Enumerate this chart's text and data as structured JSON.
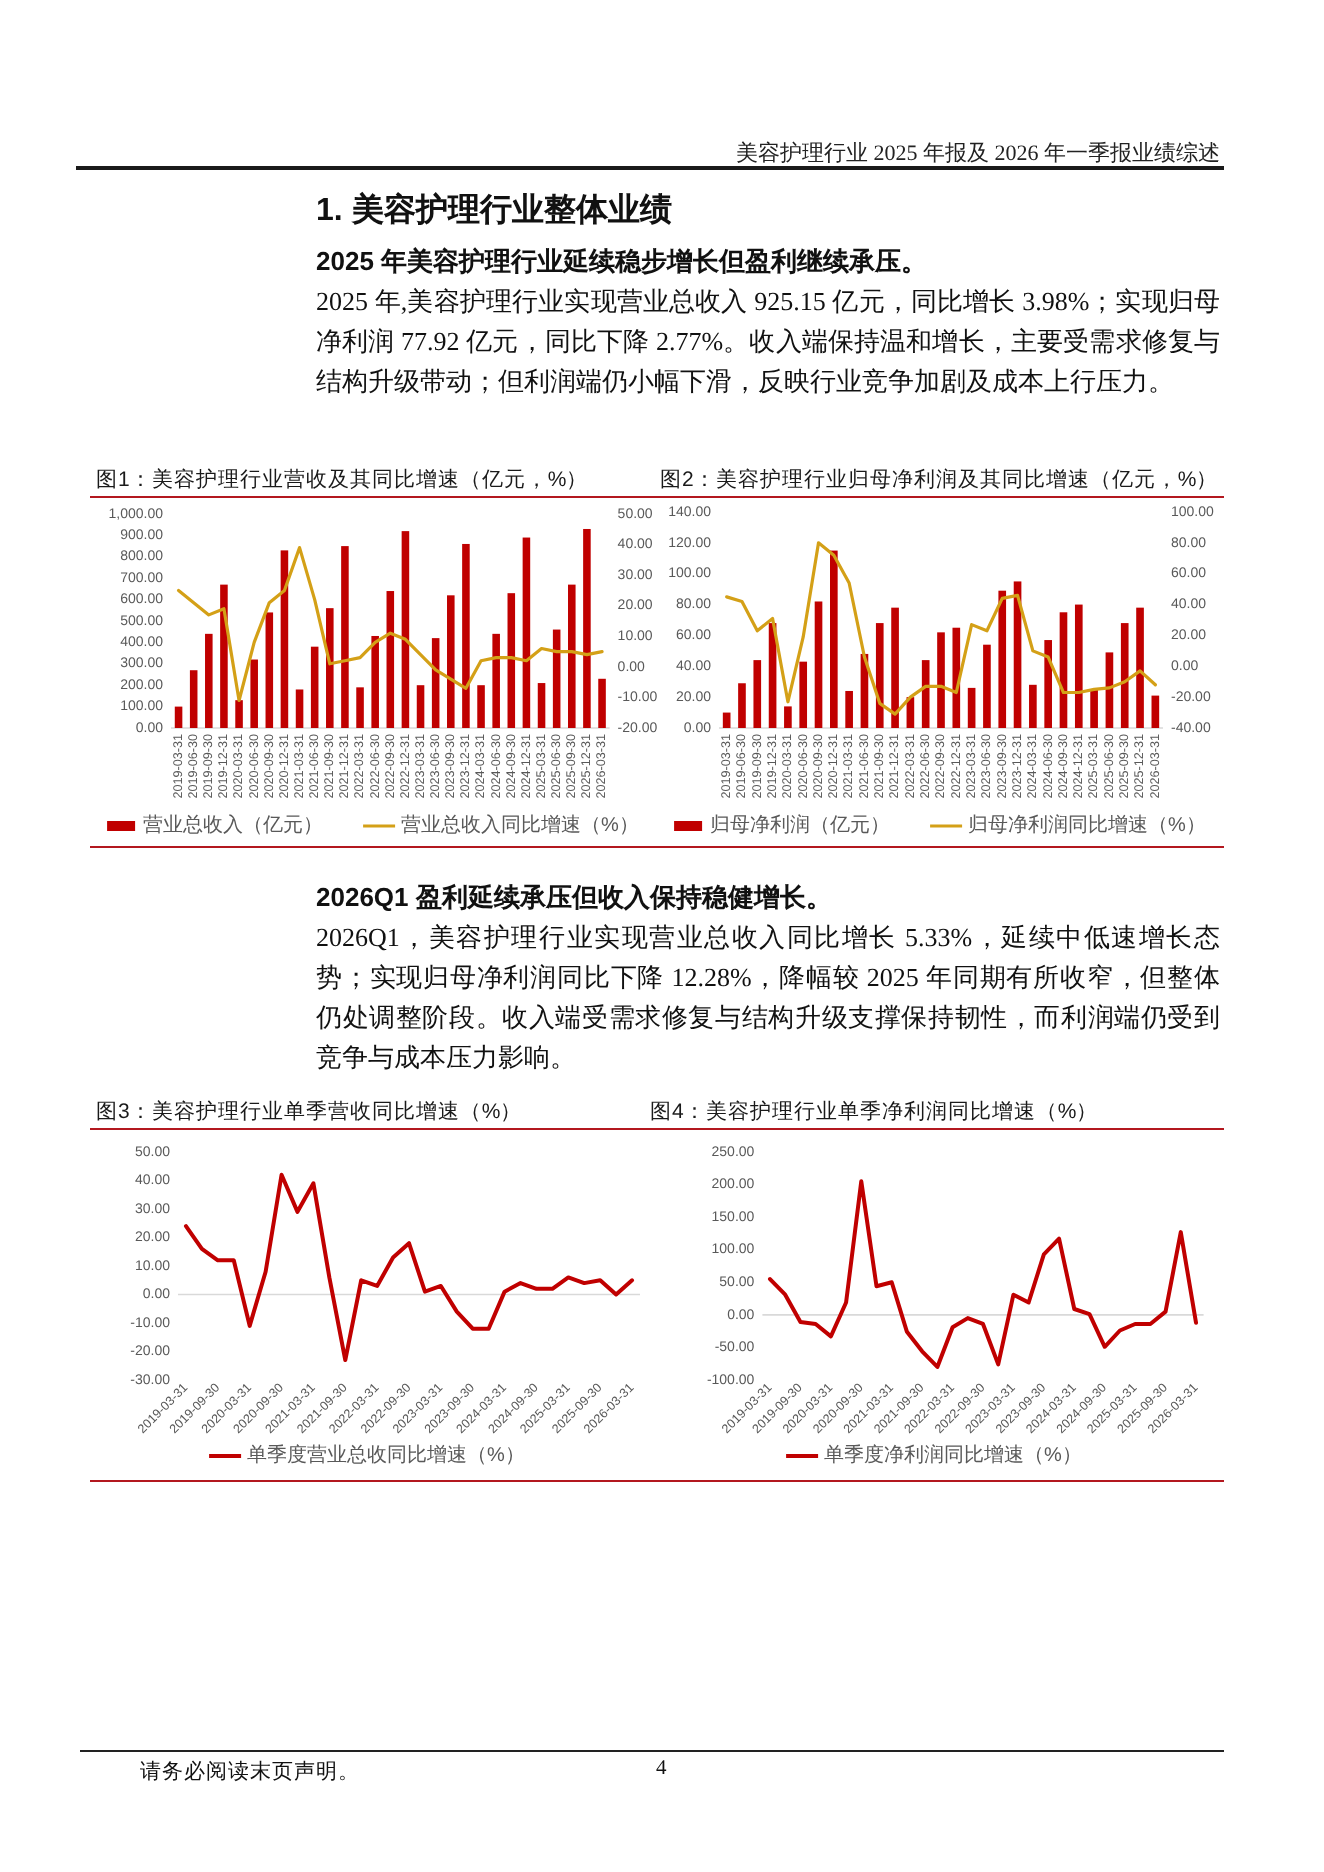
{
  "chart_data": [
    {
      "type": "bar",
      "title": "图1：美容护理行业营收及其同比增速（亿元，%）",
      "categories": [
        "2019-03-31",
        "2019-06-30",
        "2019-09-30",
        "2019-12-31",
        "2020-03-31",
        "2020-06-30",
        "2020-09-30",
        "2020-12-31",
        "2021-03-31",
        "2021-06-30",
        "2021-09-30",
        "2021-12-31",
        "2022-03-31",
        "2022-06-30",
        "2022-09-30",
        "2022-12-31",
        "2023-03-31",
        "2023-06-30",
        "2023-09-30",
        "2023-12-31",
        "2024-03-31",
        "2024-06-30",
        "2024-09-30",
        "2024-12-31",
        "2025-03-31",
        "2025-06-30",
        "2025-09-30",
        "2025-12-31",
        "2026-03-31"
      ],
      "series": [
        {
          "name": "营业总收入（亿元）",
          "color": "#c00000",
          "values": [
            100,
            270,
            440,
            670,
            130,
            320,
            540,
            830,
            180,
            380,
            560,
            850,
            190,
            430,
            640,
            920,
            200,
            420,
            620,
            860,
            200,
            440,
            630,
            890,
            210,
            460,
            670,
            930,
            230
          ]
        },
        {
          "name": "营业总收入同比增速（%）",
          "type": "line",
          "axis": "y2",
          "color": "#d4a017",
          "values": [
            25,
            21,
            17,
            19,
            -11,
            8,
            21,
            25,
            39,
            22,
            1,
            2,
            3,
            8,
            11,
            9,
            4,
            -1,
            -4,
            -7,
            2,
            3,
            3,
            2,
            6,
            5,
            5,
            4,
            5
          ]
        }
      ],
      "ylim": [
        0,
        1000
      ],
      "yticks": [
        {
          "value": 0,
          "label": "0.00"
        },
        {
          "value": 100,
          "label": "100.00"
        },
        {
          "value": 200,
          "label": "200.00"
        },
        {
          "value": 300,
          "label": "300.00"
        },
        {
          "value": 400,
          "label": "400.00"
        },
        {
          "value": 500,
          "label": "500.00"
        },
        {
          "value": 600,
          "label": "600.00"
        },
        {
          "value": 700,
          "label": "700.00"
        },
        {
          "value": 800,
          "label": "800.00"
        },
        {
          "value": 900,
          "label": "900.00"
        },
        {
          "value": 1000,
          "label": "1,000.00"
        }
      ],
      "y2lim": [
        -20,
        50
      ],
      "y2ticks": [
        {
          "value": -20,
          "label": "-20.00"
        },
        {
          "value": -10,
          "label": "-10.00"
        },
        {
          "value": 0,
          "label": "0.00"
        },
        {
          "value": 10,
          "label": "10.00"
        },
        {
          "value": 20,
          "label": "20.00"
        },
        {
          "value": 30,
          "label": "30.00"
        },
        {
          "value": 40,
          "label": "40.00"
        },
        {
          "value": 50,
          "label": "50.00"
        }
      ],
      "legend": "bottom",
      "annotations": [
        "美容护理行业 2025 年报及 2026 年一季报业绩综述",
        "1. 美容护理行业整体业绩",
        "2025 年美容护理行业延续稳步增长但盈利继续承压。",
        "2025 年,美容护理行业实现营业总收入 925.15 亿元，同比增长 3.98%；实现归母净利润 77.92 亿元，同比下降 2.77%。收入端保持温和增长，主要受需求修复与结构升级带动；但利润端仍小幅下滑，反映行业竞争加剧及成本上行压力。"
      ]
    },
    {
      "type": "bar",
      "title": "图2：美容护理行业归母净利润及其同比增速（亿元，%）",
      "categories": [
        "2019-03-31",
        "2019-06-30",
        "2019-09-30",
        "2019-12-31",
        "2020-03-31",
        "2020-06-30",
        "2020-09-30",
        "2020-12-31",
        "2021-03-31",
        "2021-06-30",
        "2021-09-30",
        "2021-12-31",
        "2022-03-31",
        "2022-06-30",
        "2022-09-30",
        "2022-12-31",
        "2023-03-31",
        "2023-06-30",
        "2023-09-30",
        "2023-12-31",
        "2024-03-31",
        "2024-06-30",
        "2024-09-30",
        "2024-12-31",
        "2025-03-31",
        "2025-06-30",
        "2025-09-30",
        "2025-12-31",
        "2026-03-31"
      ],
      "series": [
        {
          "name": "归母净利润（亿元）",
          "color": "#c00000",
          "values": [
            10,
            29,
            44,
            68,
            14,
            43,
            82,
            115,
            24,
            48,
            68,
            78,
            20,
            44,
            62,
            65,
            26,
            54,
            89,
            95,
            28,
            57,
            75,
            80,
            25,
            49,
            68,
            78,
            21
          ]
        },
        {
          "name": "归母净利润同比增速（%）",
          "type": "line",
          "axis": "y2",
          "color": "#d4a017",
          "values": [
            45,
            42,
            23,
            31,
            -23,
            19,
            80,
            72,
            54,
            6,
            -24,
            -31,
            -20,
            -13,
            -13,
            -17,
            27,
            23,
            44,
            46,
            10,
            6,
            -17,
            -17,
            -15,
            -14,
            -10,
            -3,
            -12
          ]
        }
      ],
      "ylim": [
        0,
        140
      ],
      "yticks": [
        {
          "value": 0,
          "label": "0.00"
        },
        {
          "value": 20,
          "label": "20.00"
        },
        {
          "value": 40,
          "label": "40.00"
        },
        {
          "value": 60,
          "label": "60.00"
        },
        {
          "value": 80,
          "label": "80.00"
        },
        {
          "value": 100,
          "label": "100.00"
        },
        {
          "value": 120,
          "label": "120.00"
        },
        {
          "value": 140,
          "label": "140.00"
        }
      ],
      "y2lim": [
        -40,
        100
      ],
      "y2ticks": [
        {
          "value": -40,
          "label": "-40.00"
        },
        {
          "value": -20,
          "label": "-20.00"
        },
        {
          "value": 0,
          "label": "0.00"
        },
        {
          "value": 20,
          "label": "20.00"
        },
        {
          "value": 40,
          "label": "40.00"
        },
        {
          "value": 60,
          "label": "60.00"
        },
        {
          "value": 80,
          "label": "80.00"
        },
        {
          "value": 100,
          "label": "100.00"
        }
      ],
      "legend": "bottom"
    },
    {
      "type": "line",
      "title": "图3：美容护理行业单季营收同比增速（%）",
      "categories": [
        "2019-03-31",
        null,
        "2019-09-30",
        null,
        "2020-03-31",
        null,
        "2020-09-30",
        null,
        "2021-03-31",
        null,
        "2021-09-30",
        null,
        "2022-03-31",
        null,
        "2022-09-30",
        null,
        "2023-03-31",
        null,
        "2023-09-30",
        null,
        "2024-03-31",
        null,
        "2024-09-30",
        null,
        "2025-03-31",
        null,
        "2025-09-30",
        null,
        "2026-03-31"
      ],
      "series": [
        {
          "name": "单季度营业总收同比增速（%）",
          "color": "#c00000",
          "values": [
            24,
            16,
            12,
            12,
            -11,
            8,
            42,
            29,
            39,
            6,
            -23,
            5,
            3,
            13,
            18,
            1,
            3,
            -6,
            -12,
            -12,
            1,
            4,
            2,
            2,
            6,
            4,
            5,
            0,
            5
          ]
        }
      ],
      "ylim": [
        -30,
        50
      ],
      "yticks": [
        {
          "value": -30,
          "label": "-30.00"
        },
        {
          "value": -20,
          "label": "-20.00"
        },
        {
          "value": -10,
          "label": "-10.00"
        },
        {
          "value": 0,
          "label": "0.00"
        },
        {
          "value": 10,
          "label": "10.00"
        },
        {
          "value": 20,
          "label": "20.00"
        },
        {
          "value": 30,
          "label": "30.00"
        },
        {
          "value": 40,
          "label": "40.00"
        },
        {
          "value": 50,
          "label": "50.00"
        }
      ],
      "legend": "bottom",
      "annotations": [
        "2026Q1 盈利延续承压但收入保持稳健增长。",
        "2026Q1，美容护理行业实现营业总收入同比增长 5.33%，延续中低速增长态势；实现归母净利润同比下降 12.28%，降幅较 2025 年同期有所收窄，但整体仍处调整阶段。收入端受需求修复与结构升级支撑保持韧性，而利润端仍受到竞争与成本压力影响。"
      ]
    },
    {
      "type": "line",
      "title": "图4：美容护理行业单季净利润同比增速（%）",
      "categories": [
        "2019-03-31",
        null,
        "2019-09-30",
        null,
        "2020-03-31",
        null,
        "2020-09-30",
        null,
        "2021-03-31",
        null,
        "2021-09-30",
        null,
        "2022-03-31",
        null,
        "2022-09-30",
        null,
        "2023-03-31",
        null,
        "2023-09-30",
        null,
        "2024-03-31",
        null,
        "2024-09-30",
        null,
        "2025-03-31",
        null,
        "2025-09-30",
        null,
        "2026-03-31"
      ],
      "series": [
        {
          "name": "单季度净利润同比增速（%）",
          "color": "#c00000",
          "values": [
            55,
            31,
            -11,
            -14,
            -33,
            19,
            205,
            44,
            50,
            -26,
            -56,
            -80,
            -19,
            -5,
            -14,
            -76,
            31,
            19,
            93,
            117,
            9,
            1,
            -49,
            -24,
            -14,
            -14,
            5,
            127,
            -12
          ]
        }
      ],
      "ylim": [
        -100,
        250
      ],
      "yticks": [
        {
          "value": -100,
          "label": "-100.00"
        },
        {
          "value": -50,
          "label": "-50.00"
        },
        {
          "value": 0,
          "label": "0.00"
        },
        {
          "value": 50,
          "label": "50.00"
        },
        {
          "value": 100,
          "label": "100.00"
        },
        {
          "value": 150,
          "label": "150.00"
        },
        {
          "value": 200,
          "label": "200.00"
        },
        {
          "value": 250,
          "label": "250.00"
        }
      ],
      "legend": "bottom",
      "annotations": [
        "请务必阅读末页声明。",
        "4"
      ]
    }
  ]
}
